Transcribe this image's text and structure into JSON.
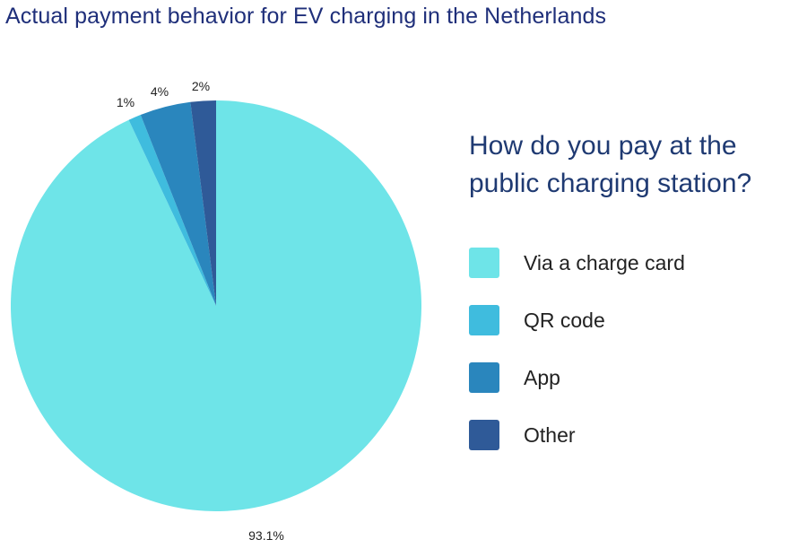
{
  "title": "Actual payment behavior for EV charging in the Netherlands",
  "chart_data": {
    "type": "pie",
    "legend_title": "How do you pay at the public charging station?",
    "legend_position": "right",
    "slices": [
      {
        "name": "Via a charge card",
        "value": 93.1,
        "label": "93.1%",
        "color": "#6ee4e8"
      },
      {
        "name": "QR code",
        "value": 1,
        "label": "1%",
        "color": "#3fbcde"
      },
      {
        "name": "App",
        "value": 4,
        "label": "4%",
        "color": "#2a86bd"
      },
      {
        "name": "Other",
        "value": 2,
        "label": "2%",
        "color": "#2f5a98"
      }
    ]
  }
}
